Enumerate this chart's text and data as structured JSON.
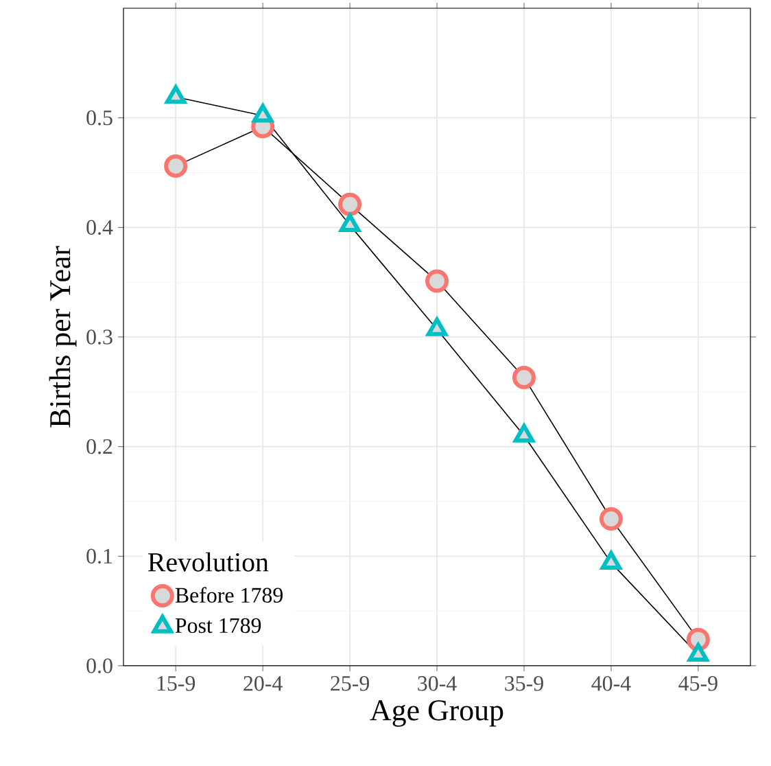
{
  "chart_data": {
    "type": "line",
    "xlabel": "Age Group",
    "ylabel": "Births per Year",
    "legend_title": "Revolution",
    "categories": [
      "15-9",
      "20-4",
      "25-9",
      "30-4",
      "35-9",
      "40-4",
      "45-9"
    ],
    "series": [
      {
        "name": "Before 1789",
        "color": "#f8766d",
        "marker": "circle",
        "values": [
          0.456,
          0.492,
          0.421,
          0.351,
          0.263,
          0.134,
          0.024
        ]
      },
      {
        "name": "Post 1789",
        "color": "#00bfc4",
        "marker": "triangle",
        "values": [
          0.519,
          0.502,
          0.402,
          0.307,
          0.21,
          0.094,
          0.01
        ]
      }
    ],
    "ylim": [
      0,
      0.6
    ],
    "yticks": [
      {
        "value": 0,
        "label": "0.0"
      },
      {
        "value": 0.1,
        "label": "0.1"
      },
      {
        "value": 0.2,
        "label": "0.2"
      },
      {
        "value": 0.3,
        "label": "0.3"
      },
      {
        "value": 0.4,
        "label": "0.4"
      },
      {
        "value": 0.5,
        "label": "0.5"
      }
    ],
    "grid": true,
    "legend": "bottom left"
  }
}
